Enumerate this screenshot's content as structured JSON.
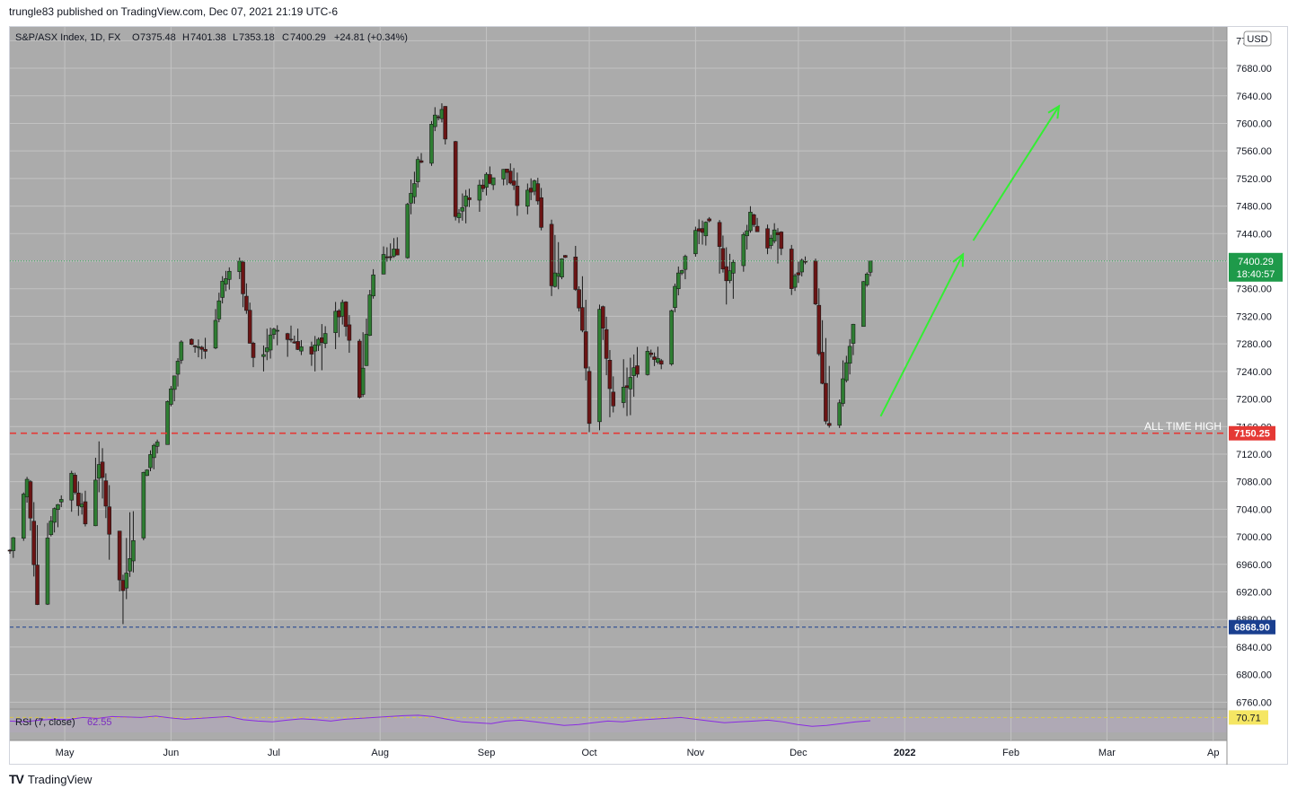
{
  "header": {
    "published": "trungle83 published on TradingView.com, Dec 07, 2021 21:19 UTC-6"
  },
  "legend": {
    "symbol": "S&P/ASX Index, 1D, FX",
    "o_label": "O",
    "o_value": "7375.48",
    "h_label": "H",
    "h_value": "7401.38",
    "l_label": "L",
    "l_value": "7353.18",
    "c_label": "C",
    "c_value": "7400.29",
    "change": "+24.81 (+0.34%)"
  },
  "currency_badge": "USD",
  "rsi": {
    "label": "RSI (7, close)",
    "value": "62.55",
    "axis_value": "70.71"
  },
  "annotations": {
    "ath_label": "ALL TIME HIGH"
  },
  "footer": {
    "logo": "TV",
    "brand": "TradingView"
  },
  "colors": {
    "background": "#ababab",
    "up": "#2e7d32",
    "down": "#6b1414",
    "ath_line": "#e53935",
    "support_line": "#1a3f8f",
    "arrow": "#33ee33",
    "rsi_line": "#8a2be2",
    "last_price_badge": "#1e9a4a"
  },
  "chart_data": {
    "type": "candlestick",
    "title": "S&P/ASX Index, 1D, FX",
    "x_ticks": [
      "May",
      "Jun",
      "Jul",
      "Aug",
      "Sep",
      "Oct",
      "Nov",
      "Dec",
      "2022",
      "Feb",
      "Mar",
      "Ap"
    ],
    "y_ticks": [
      7720,
      7680,
      7640,
      7600,
      7560,
      7520,
      7480,
      7440,
      7400,
      7360,
      7320,
      7280,
      7240,
      7200,
      7160,
      7120,
      7080,
      7040,
      7000,
      6960,
      6920,
      6880,
      6840,
      6800,
      6760
    ],
    "y_range": [
      6750,
      7740
    ],
    "x_range": [
      "2021-04-15",
      "2022-04-05"
    ],
    "last_price": 7400.29,
    "last_price_label": "7400.29",
    "countdown": "18:40:57",
    "levels": [
      {
        "name": "ALL TIME HIGH",
        "value": 7150.25,
        "label": "7150.25",
        "style": "dashed",
        "color": "#e53935"
      },
      {
        "name": "",
        "value": 6868.9,
        "label": "6868.90",
        "style": "dashed",
        "color": "#1a3f8f"
      }
    ],
    "waypoints": [
      {
        "date": "2021-04-15",
        "close": 6980,
        "hi": 7000,
        "lo": 6950
      },
      {
        "date": "2021-04-20",
        "close": 7080,
        "hi": 7095,
        "lo": 7000
      },
      {
        "date": "2021-04-23",
        "close": 6910,
        "hi": 7060,
        "lo": 6895
      },
      {
        "date": "2021-04-27",
        "close": 7030,
        "hi": 7050,
        "lo": 6985
      },
      {
        "date": "2021-05-03",
        "close": 7090,
        "hi": 7100,
        "lo": 7010
      },
      {
        "date": "2021-05-07",
        "close": 7020,
        "hi": 7110,
        "lo": 7005
      },
      {
        "date": "2021-05-11",
        "close": 7110,
        "hi": 7170,
        "lo": 7050
      },
      {
        "date": "2021-05-14",
        "close": 7010,
        "hi": 7120,
        "lo": 6920
      },
      {
        "date": "2021-05-18",
        "close": 6920,
        "hi": 7090,
        "lo": 6840
      },
      {
        "date": "2021-05-24",
        "close": 7090,
        "hi": 7100,
        "lo": 7010
      },
      {
        "date": "2021-05-31",
        "close": 7190,
        "hi": 7210,
        "lo": 7120
      },
      {
        "date": "2021-06-05",
        "close": 7300,
        "hi": 7320,
        "lo": 7260
      },
      {
        "date": "2021-06-12",
        "close": 7260,
        "hi": 7300,
        "lo": 7240
      },
      {
        "date": "2021-06-16",
        "close": 7370,
        "hi": 7390,
        "lo": 7330
      },
      {
        "date": "2021-06-21",
        "close": 7400,
        "hi": 7410,
        "lo": 7360
      },
      {
        "date": "2021-06-25",
        "close": 7250,
        "hi": 7380,
        "lo": 7200
      },
      {
        "date": "2021-07-02",
        "close": 7300,
        "hi": 7330,
        "lo": 7230
      },
      {
        "date": "2021-07-08",
        "close": 7280,
        "hi": 7320,
        "lo": 7230
      },
      {
        "date": "2021-07-12",
        "close": 7260,
        "hi": 7330,
        "lo": 7220
      },
      {
        "date": "2021-07-16",
        "close": 7300,
        "hi": 7350,
        "lo": 7210
      },
      {
        "date": "2021-07-21",
        "close": 7330,
        "hi": 7360,
        "lo": 7260
      },
      {
        "date": "2021-07-26",
        "close": 7200,
        "hi": 7340,
        "lo": 7180
      },
      {
        "date": "2021-07-30",
        "close": 7390,
        "hi": 7420,
        "lo": 7380
      },
      {
        "date": "2021-08-06",
        "close": 7420,
        "hi": 7480,
        "lo": 7360
      },
      {
        "date": "2021-08-12",
        "close": 7540,
        "hi": 7560,
        "lo": 7500
      },
      {
        "date": "2021-08-17",
        "close": 7610,
        "hi": 7640,
        "lo": 7580
      },
      {
        "date": "2021-08-19",
        "close": 7630,
        "hi": 7650,
        "lo": 7590
      },
      {
        "date": "2021-08-22",
        "close": 7470,
        "hi": 7600,
        "lo": 7440
      },
      {
        "date": "2021-08-27",
        "close": 7490,
        "hi": 7520,
        "lo": 7420
      },
      {
        "date": "2021-09-01",
        "close": 7520,
        "hi": 7550,
        "lo": 7480
      },
      {
        "date": "2021-09-07",
        "close": 7530,
        "hi": 7560,
        "lo": 7490
      },
      {
        "date": "2021-09-11",
        "close": 7470,
        "hi": 7540,
        "lo": 7430
      },
      {
        "date": "2021-09-15",
        "close": 7520,
        "hi": 7550,
        "lo": 7480
      },
      {
        "date": "2021-09-20",
        "close": 7370,
        "hi": 7500,
        "lo": 7330
      },
      {
        "date": "2021-09-25",
        "close": 7420,
        "hi": 7460,
        "lo": 7360
      },
      {
        "date": "2021-09-29",
        "close": 7310,
        "hi": 7440,
        "lo": 7300
      },
      {
        "date": "2021-10-01",
        "close": 7160,
        "hi": 7330,
        "lo": 7100
      },
      {
        "date": "2021-10-04",
        "close": 7330,
        "hi": 7350,
        "lo": 7140
      },
      {
        "date": "2021-10-08",
        "close": 7180,
        "hi": 7330,
        "lo": 7140
      },
      {
        "date": "2021-10-13",
        "close": 7230,
        "hi": 7290,
        "lo": 7130
      },
      {
        "date": "2021-10-18",
        "close": 7270,
        "hi": 7300,
        "lo": 7220
      },
      {
        "date": "2021-10-22",
        "close": 7260,
        "hi": 7300,
        "lo": 7230
      },
      {
        "date": "2021-10-27",
        "close": 7380,
        "hi": 7400,
        "lo": 7330
      },
      {
        "date": "2021-11-01",
        "close": 7440,
        "hi": 7470,
        "lo": 7400
      },
      {
        "date": "2021-11-06",
        "close": 7450,
        "hi": 7480,
        "lo": 7400
      },
      {
        "date": "2021-11-10",
        "close": 7380,
        "hi": 7450,
        "lo": 7300
      },
      {
        "date": "2021-11-13",
        "close": 7400,
        "hi": 7440,
        "lo": 7310
      },
      {
        "date": "2021-11-17",
        "close": 7470,
        "hi": 7490,
        "lo": 7430
      },
      {
        "date": "2021-11-21",
        "close": 7420,
        "hi": 7480,
        "lo": 7400
      },
      {
        "date": "2021-11-25",
        "close": 7440,
        "hi": 7460,
        "lo": 7330
      },
      {
        "date": "2021-11-29",
        "close": 7360,
        "hi": 7430,
        "lo": 7340
      },
      {
        "date": "2021-12-03",
        "close": 7410,
        "hi": 7420,
        "lo": 7380
      },
      {
        "date": "2021-12-06",
        "close": 7330,
        "hi": 7420,
        "lo": 7320
      },
      {
        "date": "2021-12-09",
        "close": 7160,
        "hi": 7360,
        "lo": 7150
      },
      {
        "date": "2021-12-12",
        "close": 7160,
        "hi": 7270,
        "lo": 7130
      },
      {
        "date": "2021-12-15",
        "close": 7250,
        "hi": 7290,
        "lo": 7200
      },
      {
        "date": "2021-12-18",
        "close": 7330,
        "hi": 7360,
        "lo": 7270
      },
      {
        "date": "2021-12-21",
        "close": 7375,
        "hi": 7390,
        "lo": 7350
      },
      {
        "date": "2021-12-22",
        "close": 7400.29,
        "hi": 7401.38,
        "lo": 7353.18
      }
    ],
    "projection": [
      {
        "x": "2021-12-25",
        "y": 7175
      },
      {
        "x": "2022-01-18",
        "y": 7410
      },
      {
        "x": "2022-01-21",
        "y": 7430
      },
      {
        "x": "2022-02-15",
        "y": 7625
      }
    ],
    "rsi_series": [
      62,
      60,
      64,
      66,
      65,
      70,
      68,
      72,
      71,
      70,
      73,
      69,
      66,
      68,
      70,
      72,
      65,
      62,
      60,
      64,
      67,
      65,
      62,
      66,
      68,
      70,
      72,
      74,
      75,
      72,
      66,
      60,
      58,
      56,
      62,
      64,
      60,
      56,
      52,
      54,
      58,
      62,
      60,
      64,
      66,
      68,
      70,
      66,
      62,
      58,
      60,
      62,
      64,
      60,
      54,
      50,
      52,
      56,
      60,
      62.55
    ]
  }
}
